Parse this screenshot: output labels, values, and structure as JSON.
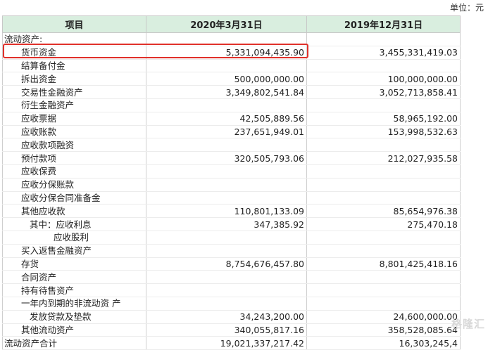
{
  "unit_label": "单位：元",
  "headers": {
    "item": "项目",
    "col1": "2020年3月31日",
    "col2": "2019年12月31日"
  },
  "rows": [
    {
      "label": "流动资产:",
      "v1": "",
      "v2": ""
    },
    {
      "label": "货币资金",
      "v1": "5,331,094,435.90",
      "v2": "3,455,331,419.03"
    },
    {
      "label": "结算备付金",
      "v1": "",
      "v2": ""
    },
    {
      "label": "拆出资金",
      "v1": "500,000,000.00",
      "v2": "100,000,000.00"
    },
    {
      "label": "交易性金融资产",
      "v1": "3,349,802,541.84",
      "v2": "3,052,713,858.41"
    },
    {
      "label": "衍生金融资产",
      "v1": "",
      "v2": ""
    },
    {
      "label": "应收票据",
      "v1": "42,505,889.56",
      "v2": "58,965,192.00"
    },
    {
      "label": "应收账款",
      "v1": "237,651,949.01",
      "v2": "153,998,532.63"
    },
    {
      "label": "应收款项融资",
      "v1": "",
      "v2": ""
    },
    {
      "label": "预付款项",
      "v1": "320,505,793.06",
      "v2": "212,027,935.58"
    },
    {
      "label": "应收保费",
      "v1": "",
      "v2": ""
    },
    {
      "label": "应收分保账款",
      "v1": "",
      "v2": ""
    },
    {
      "label": "应收分保合同准备金",
      "v1": "",
      "v2": ""
    },
    {
      "label": "其他应收款",
      "v1": "110,801,133.09",
      "v2": "85,654,976.38"
    },
    {
      "label": "其中：应收利息",
      "v1": "347,385.92",
      "v2": "275,470.18"
    },
    {
      "label": "应收股利",
      "v1": "",
      "v2": ""
    },
    {
      "label": "买入返售金融资产",
      "v1": "",
      "v2": ""
    },
    {
      "label": "存货",
      "v1": "8,754,676,457.80",
      "v2": "8,801,425,418.16"
    },
    {
      "label": "合同资产",
      "v1": "",
      "v2": ""
    },
    {
      "label": "持有待售资产",
      "v1": "",
      "v2": ""
    },
    {
      "label": "一年内到期的非流动资 产",
      "v1": "",
      "v2": ""
    },
    {
      "label": "发放贷款及垫款",
      "v1": "34,243,200.00",
      "v2": "24,600,000.00"
    },
    {
      "label": "其他流动资产",
      "v1": "340,055,817.16",
      "v2": "358,528,085.64"
    },
    {
      "label": "流动资产合计",
      "v1": "19,021,337,217.42",
      "v2": "16,303,245,4"
    }
  ],
  "watermark": "格隆汇",
  "colors": {
    "header_bg": "#d9eedf",
    "highlight": "#e0302a"
  }
}
